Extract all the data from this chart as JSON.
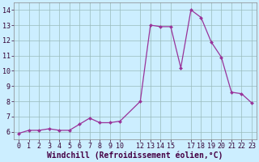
{
  "x": [
    0,
    1,
    2,
    3,
    4,
    5,
    6,
    7,
    8,
    9,
    10,
    12,
    13,
    14,
    15,
    16,
    17,
    18,
    19,
    20,
    21,
    22,
    23
  ],
  "y": [
    5.9,
    6.1,
    6.1,
    6.2,
    6.1,
    6.1,
    6.5,
    6.9,
    6.6,
    6.6,
    6.7,
    8.0,
    13.0,
    12.9,
    12.9,
    10.2,
    14.0,
    13.5,
    11.9,
    10.9,
    8.6,
    8.5,
    7.9
  ],
  "line_color": "#993399",
  "marker_color": "#993399",
  "bg_color": "#cceeff",
  "grid_color": "#99bbbb",
  "xlabel": "Windchill (Refroidissement éolien,°C)",
  "xlim": [
    -0.5,
    23.5
  ],
  "ylim": [
    5.5,
    14.5
  ],
  "yticks": [
    6,
    7,
    8,
    9,
    10,
    11,
    12,
    13,
    14
  ],
  "xticks": [
    0,
    1,
    2,
    3,
    4,
    5,
    6,
    7,
    8,
    9,
    10,
    12,
    13,
    14,
    15,
    17,
    18,
    19,
    20,
    21,
    22,
    23
  ],
  "tick_label_fontsize": 6,
  "xlabel_fontsize": 7
}
